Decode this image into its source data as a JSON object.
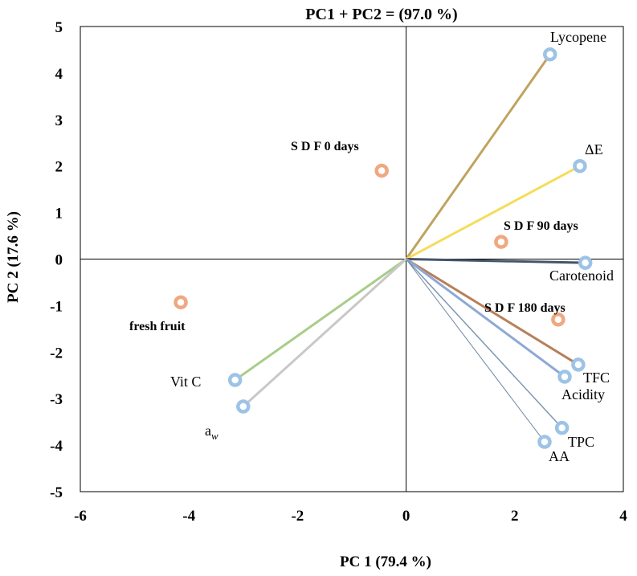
{
  "chart_data": {
    "type": "scatter",
    "subtype": "PCA biplot",
    "title": "PC1 + PC2 = (97.0 %)",
    "xlabel": "PC 1 (79.4 %)",
    "ylabel": "PC 2 (17.6 %)",
    "xlim": [
      -6,
      4
    ],
    "ylim": [
      -5,
      5
    ],
    "xticks": [
      -6,
      -4,
      -2,
      0,
      2,
      4
    ],
    "yticks": [
      -5,
      -4,
      -3,
      -2,
      -1,
      0,
      1,
      2,
      3,
      4,
      5
    ],
    "observations": [
      {
        "label": "S D F 0 days",
        "x": -0.45,
        "y": 1.9,
        "color": "#f0a880"
      },
      {
        "label": "S D F 90 days",
        "x": 1.75,
        "y": 0.37,
        "color": "#f0a880"
      },
      {
        "label": "S D F 180 days",
        "x": 2.8,
        "y": -1.3,
        "color": "#f0a880"
      },
      {
        "label": "fresh fruit",
        "x": -4.15,
        "y": -0.93,
        "color": "#f0a880"
      }
    ],
    "variables": [
      {
        "label": "Lycopene",
        "x": 2.65,
        "y": 4.4,
        "line_color": "#bfa45f",
        "stroke": 3
      },
      {
        "label": "ΔE",
        "x": 3.2,
        "y": 2.0,
        "line_color": "#f6dc5a",
        "stroke": 3
      },
      {
        "label": "Carotenoid",
        "x": 3.3,
        "y": -0.08,
        "line_color": "#44546a",
        "stroke": 3
      },
      {
        "label": "TFC",
        "x": 3.17,
        "y": -2.27,
        "line_color": "#b7805a",
        "stroke": 3
      },
      {
        "label": "Acidity",
        "x": 2.92,
        "y": -2.53,
        "line_color": "#8ea9d6",
        "stroke": 3
      },
      {
        "label": "TPC",
        "x": 2.87,
        "y": -3.63,
        "line_color": "#7f97b2",
        "stroke": 1.5
      },
      {
        "label": "AA",
        "x": 2.55,
        "y": -3.93,
        "line_color": "#6f89a3",
        "stroke": 1
      },
      {
        "label": "Vit C",
        "x": -3.15,
        "y": -2.6,
        "line_color": "#a9cd89",
        "stroke": 3
      },
      {
        "label": "a",
        "label_sub": "w",
        "x": -3.0,
        "y": -3.17,
        "line_color": "#c8c8c8",
        "stroke": 3
      }
    ],
    "marker_color_variables": "#9dc3e6"
  }
}
